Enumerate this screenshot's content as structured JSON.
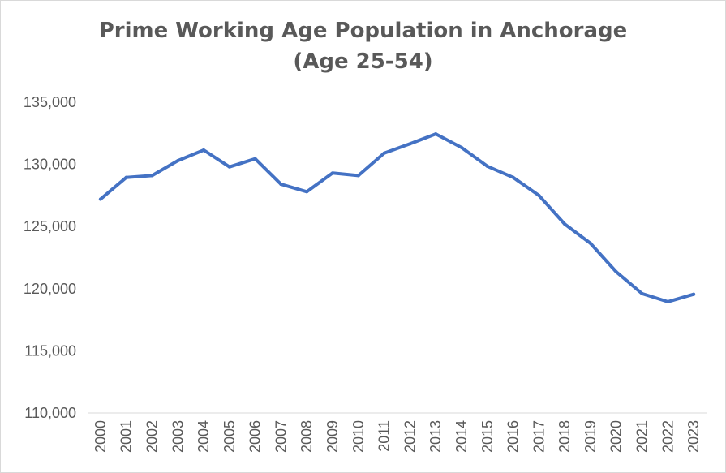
{
  "chart_data": {
    "type": "line",
    "title": "Prime Working Age Population in Anchorage",
    "subtitle": "(Age 25-54)",
    "xlabel": "",
    "ylabel": "",
    "x": [
      "2000",
      "2001",
      "2002",
      "2003",
      "2004",
      "2005",
      "2006",
      "2007",
      "2008",
      "2009",
      "2010",
      "2011",
      "2012",
      "2013",
      "2014",
      "2015",
      "2016",
      "2017",
      "2018",
      "2019",
      "2020",
      "2021",
      "2022",
      "2023"
    ],
    "series": [
      {
        "values": [
          127200,
          128950,
          129100,
          130300,
          131150,
          129800,
          130450,
          128400,
          127800,
          129300,
          129100,
          130900,
          131650,
          132450,
          131350,
          129850,
          128950,
          127500,
          125200,
          123650,
          121350,
          119600,
          118950,
          119550
        ],
        "color": "#4472C4"
      }
    ],
    "ylim": [
      110000,
      135000
    ],
    "yticks": [
      110000,
      115000,
      120000,
      125000,
      130000,
      135000
    ],
    "ytick_labels": [
      "110,000",
      "115,000",
      "120,000",
      "125,000",
      "130,000",
      "135,000"
    ],
    "grid": false,
    "legend": "none"
  }
}
